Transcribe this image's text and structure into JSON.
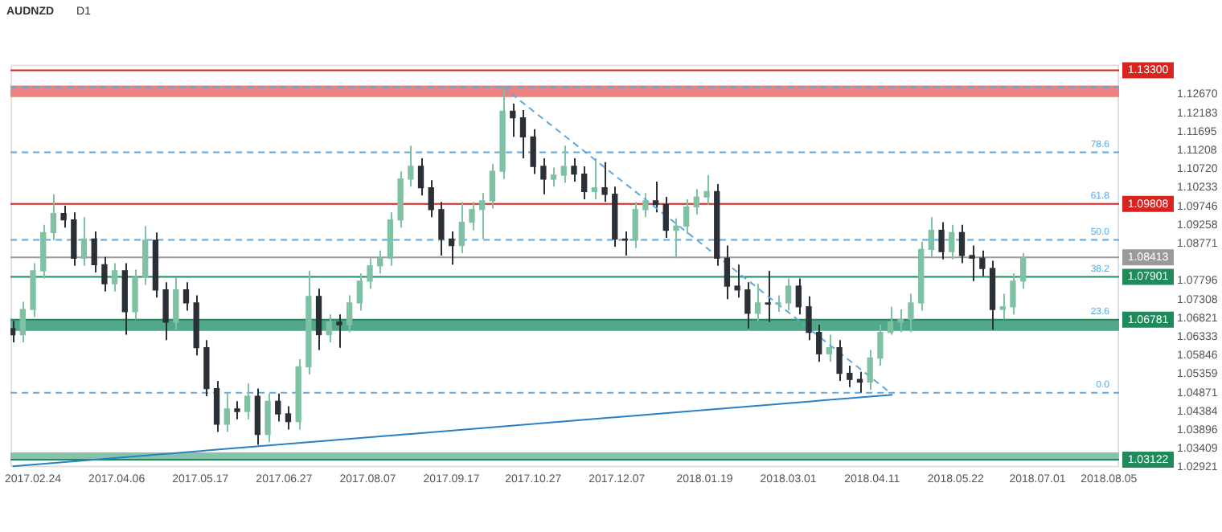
{
  "chart_data": {
    "type": "candlestick",
    "title": "AUDNZD",
    "annotations": [
      "D1",
      {
        "text": "78.6",
        "y": 1.1116
      },
      {
        "text": "61.8",
        "y": 1.09808
      },
      {
        "text": "50.0",
        "y": 1.0887
      },
      {
        "text": "38.2",
        "y": 1.07901
      },
      {
        "text": "23.6",
        "y": 1.06781
      },
      {
        "text": "0.0",
        "y": 1.0487
      }
    ],
    "x": [
      "2017-02-14",
      "2017-02-19",
      "2017-02-24",
      "2017-03-01",
      "2017-03-06",
      "2017-03-11",
      "2017-03-16",
      "2017-03-21",
      "2017-03-26",
      "2017-03-31",
      "2017-04-05",
      "2017-04-10",
      "2017-04-15",
      "2017-04-20",
      "2017-04-25",
      "2017-04-30",
      "2017-05-05",
      "2017-05-10",
      "2017-05-15",
      "2017-05-20",
      "2017-05-25",
      "2017-05-30",
      "2017-06-04",
      "2017-06-09",
      "2017-06-14",
      "2017-06-19",
      "2017-06-24",
      "2017-06-29",
      "2017-07-04",
      "2017-07-09",
      "2017-07-14",
      "2017-07-19",
      "2017-07-24",
      "2017-07-29",
      "2017-08-03",
      "2017-08-08",
      "2017-08-13",
      "2017-08-18",
      "2017-08-23",
      "2017-08-28",
      "2017-09-02",
      "2017-09-07",
      "2017-09-12",
      "2017-09-17",
      "2017-09-22",
      "2017-09-27",
      "2017-10-02",
      "2017-10-07",
      "2017-10-12",
      "2017-10-17",
      "2017-10-22",
      "2017-10-27",
      "2017-11-01",
      "2017-11-06",
      "2017-11-11",
      "2017-11-16",
      "2017-11-21",
      "2017-11-26",
      "2017-12-01",
      "2017-12-06",
      "2017-12-11",
      "2017-12-16",
      "2017-12-21",
      "2017-12-26",
      "2017-12-31",
      "2018-01-05",
      "2018-01-10",
      "2018-01-15",
      "2018-01-20",
      "2018-01-25",
      "2018-01-30",
      "2018-02-04",
      "2018-02-09",
      "2018-02-14",
      "2018-02-19",
      "2018-02-24",
      "2018-03-01",
      "2018-03-06",
      "2018-03-11",
      "2018-03-16",
      "2018-03-21",
      "2018-03-26",
      "2018-03-31",
      "2018-04-05",
      "2018-04-10",
      "2018-04-15",
      "2018-04-20",
      "2018-04-25",
      "2018-04-30",
      "2018-05-05",
      "2018-05-10",
      "2018-05-15",
      "2018-05-20",
      "2018-05-25",
      "2018-05-30",
      "2018-06-04",
      "2018-06-09",
      "2018-06-14",
      "2018-06-19",
      "2018-06-24"
    ],
    "ohlc": [
      [
        1.0655,
        1.0675,
        1.0619,
        1.0639
      ],
      [
        1.0639,
        1.0725,
        1.0619,
        1.0705
      ],
      [
        1.0705,
        1.0826,
        1.0685,
        1.0806
      ],
      [
        1.0806,
        1.0926,
        1.0786,
        1.0906
      ],
      [
        1.0906,
        1.1006,
        1.0886,
        1.0956
      ],
      [
        1.0956,
        1.0976,
        1.0919,
        1.0939
      ],
      [
        1.0939,
        1.0959,
        1.0819,
        1.0839
      ],
      [
        1.0839,
        1.0946,
        1.0819,
        1.0889
      ],
      [
        1.0889,
        1.0909,
        1.0802,
        1.0822
      ],
      [
        1.0822,
        1.0842,
        1.0752,
        1.0772
      ],
      [
        1.0772,
        1.0826,
        1.0752,
        1.0806
      ],
      [
        1.0806,
        1.0826,
        1.0639,
        1.0699
      ],
      [
        1.0699,
        1.0809,
        1.0679,
        1.0789
      ],
      [
        1.0789,
        1.0923,
        1.0769,
        1.0886
      ],
      [
        1.0886,
        1.0906,
        1.0736,
        1.0756
      ],
      [
        1.0756,
        1.0776,
        1.0625,
        1.0672
      ],
      [
        1.0672,
        1.0789,
        1.0652,
        1.0756
      ],
      [
        1.0756,
        1.0776,
        1.0702,
        1.0722
      ],
      [
        1.0722,
        1.0742,
        1.0585,
        1.0605
      ],
      [
        1.0605,
        1.0625,
        1.0478,
        1.0498
      ],
      [
        1.0498,
        1.0518,
        1.0385,
        1.0405
      ],
      [
        1.0405,
        1.0485,
        1.0385,
        1.0445
      ],
      [
        1.0445,
        1.0465,
        1.0418,
        1.0438
      ],
      [
        1.0438,
        1.0512,
        1.0418,
        1.0478
      ],
      [
        1.0478,
        1.0498,
        1.0351,
        1.0378
      ],
      [
        1.0378,
        1.0485,
        1.0358,
        1.0465
      ],
      [
        1.0465,
        1.0485,
        1.0412,
        1.0432
      ],
      [
        1.0432,
        1.0452,
        1.0391,
        1.0412
      ],
      [
        1.0412,
        1.0575,
        1.0391,
        1.0555
      ],
      [
        1.0555,
        1.0806,
        1.0535,
        1.0739
      ],
      [
        1.0739,
        1.0759,
        1.0599,
        1.0639
      ],
      [
        1.0639,
        1.0692,
        1.0619,
        1.0672
      ],
      [
        1.0672,
        1.0692,
        1.0605,
        1.0665
      ],
      [
        1.0665,
        1.0742,
        1.0645,
        1.0722
      ],
      [
        1.0722,
        1.0799,
        1.0702,
        1.0779
      ],
      [
        1.0779,
        1.0839,
        1.0759,
        1.0819
      ],
      [
        1.0819,
        1.0859,
        1.0799,
        1.0839
      ],
      [
        1.0839,
        1.0959,
        1.0819,
        1.0939
      ],
      [
        1.0939,
        1.1066,
        1.0919,
        1.1046
      ],
      [
        1.1046,
        1.1133,
        1.1026,
        1.1079
      ],
      [
        1.1079,
        1.11,
        1.1003,
        1.1023
      ],
      [
        1.1023,
        1.1043,
        1.0946,
        1.0966
      ],
      [
        1.0966,
        1.0986,
        1.0846,
        1.0889
      ],
      [
        1.0889,
        1.0909,
        1.0822,
        1.0872
      ],
      [
        1.0872,
        1.0986,
        1.0852,
        1.0933
      ],
      [
        1.0933,
        1.0986,
        1.0912,
        1.0966
      ],
      [
        1.0966,
        1.1009,
        1.0889,
        1.0989
      ],
      [
        1.0989,
        1.1086,
        1.0969,
        1.1066
      ],
      [
        1.1066,
        1.1287,
        1.1046,
        1.1223
      ],
      [
        1.1223,
        1.1243,
        1.1156,
        1.1206
      ],
      [
        1.1206,
        1.1226,
        1.11,
        1.1156
      ],
      [
        1.1156,
        1.1176,
        1.1059,
        1.1079
      ],
      [
        1.1079,
        1.11,
        1.1006,
        1.1046
      ],
      [
        1.1046,
        1.1076,
        1.1026,
        1.1056
      ],
      [
        1.1056,
        1.1133,
        1.1036,
        1.1079
      ],
      [
        1.1079,
        1.11,
        1.1039,
        1.1059
      ],
      [
        1.1059,
        1.1079,
        1.0993,
        1.1013
      ],
      [
        1.1013,
        1.11,
        1.0993,
        1.1023
      ],
      [
        1.1023,
        1.109,
        1.0986,
        1.1006
      ],
      [
        1.1006,
        1.1026,
        1.0869,
        1.0889
      ],
      [
        1.0889,
        1.0909,
        1.0846,
        1.0886
      ],
      [
        1.0886,
        1.0986,
        1.0866,
        1.0966
      ],
      [
        1.0966,
        1.1009,
        1.0946,
        1.0989
      ],
      [
        1.0989,
        1.1039,
        1.0959,
        1.0979
      ],
      [
        1.0979,
        1.0999,
        1.0892,
        1.0912
      ],
      [
        1.0912,
        1.0943,
        1.0839,
        1.0923
      ],
      [
        1.0923,
        1.0993,
        1.0902,
        1.0973
      ],
      [
        1.0973,
        1.1019,
        1.0953,
        1.0999
      ],
      [
        1.0999,
        1.1056,
        1.0979,
        1.1013
      ],
      [
        1.1013,
        1.1033,
        1.0819,
        1.0839
      ],
      [
        1.0839,
        1.0872,
        1.0732,
        1.0766
      ],
      [
        1.0766,
        1.0822,
        1.0736,
        1.0756
      ],
      [
        1.0756,
        1.0776,
        1.0655,
        1.0695
      ],
      [
        1.0695,
        1.0772,
        1.0675,
        1.0722
      ],
      [
        1.0722,
        1.0806,
        1.0672,
        1.0719
      ],
      [
        1.0719,
        1.0742,
        1.0699,
        1.0722
      ],
      [
        1.0722,
        1.0786,
        1.0702,
        1.0766
      ],
      [
        1.0766,
        1.0786,
        1.0692,
        1.0712
      ],
      [
        1.0712,
        1.0739,
        1.0625,
        1.0645
      ],
      [
        1.0645,
        1.0665,
        1.0568,
        1.0589
      ],
      [
        1.0589,
        1.0639,
        1.0568,
        1.0605
      ],
      [
        1.0605,
        1.0625,
        1.0518,
        1.0538
      ],
      [
        1.0538,
        1.0558,
        1.0502,
        1.0522
      ],
      [
        1.0522,
        1.0542,
        1.0487,
        1.0515
      ],
      [
        1.0515,
        1.0599,
        1.0495,
        1.0578
      ],
      [
        1.0578,
        1.0665,
        1.0558,
        1.0645
      ],
      [
        1.0645,
        1.0712,
        1.0639,
        1.0672
      ],
      [
        1.0672,
        1.0705,
        1.0645,
        1.0679
      ],
      [
        1.0679,
        1.0746,
        1.0645,
        1.0722
      ],
      [
        1.0722,
        1.0882,
        1.0702,
        1.0862
      ],
      [
        1.0862,
        1.0946,
        1.0842,
        1.0912
      ],
      [
        1.0912,
        1.0933,
        1.0836,
        1.0856
      ],
      [
        1.0856,
        1.0926,
        1.0836,
        1.0906
      ],
      [
        1.0906,
        1.0926,
        1.0826,
        1.0846
      ],
      [
        1.0846,
        1.0872,
        1.0779,
        1.0839
      ],
      [
        1.0839,
        1.0859,
        1.0792,
        1.0812
      ],
      [
        1.0812,
        1.0832,
        1.0652,
        1.0705
      ],
      [
        1.0705,
        1.0746,
        1.0679,
        1.0712
      ],
      [
        1.0712,
        1.0799,
        1.0692,
        1.0779
      ],
      [
        1.0779,
        1.0852,
        1.0759,
        1.0841
      ]
    ],
    "series": [
      {
        "type": "line",
        "x": [
          "2017-02-14",
          "2018-04-21"
        ],
        "values": [
          1.0295,
          1.0482
        ],
        "color": "#2a7fc9",
        "line_style": "solid"
      },
      {
        "type": "line",
        "x": [
          "2017-10-12",
          "2018-04-20"
        ],
        "values": [
          1.1287,
          1.0487
        ],
        "color": "#5aa9e6",
        "line_style": "dashed"
      }
    ],
    "xlim": [
      "2017-02-13",
      "2018-08-10"
    ],
    "xticks": [
      {
        "value": "2017-02-24",
        "label": "2017.02.24"
      },
      {
        "value": "2017-04-06",
        "label": "2017.04.06"
      },
      {
        "value": "2017-05-17",
        "label": "2017.05.17"
      },
      {
        "value": "2017-06-27",
        "label": "2017.06.27"
      },
      {
        "value": "2017-08-07",
        "label": "2017.08.07"
      },
      {
        "value": "2017-09-17",
        "label": "2017.09.17"
      },
      {
        "value": "2017-10-27",
        "label": "2017.10.27"
      },
      {
        "value": "2017-12-07",
        "label": "2017.12.07"
      },
      {
        "value": "2018-01-19",
        "label": "2018.01.19"
      },
      {
        "value": "2018-03-01",
        "label": "2018.03.01"
      },
      {
        "value": "2018-04-11",
        "label": "2018.04.11"
      },
      {
        "value": "2018-05-22",
        "label": "2018.05.22"
      },
      {
        "value": "2018-07-01",
        "label": "2018.07.01"
      },
      {
        "value": "2018-08-05",
        "label": "2018.08.05"
      }
    ],
    "ylim": [
      1.02921,
      1.1345
    ],
    "yticks": [
      1.02921,
      1.03409,
      1.03896,
      1.04384,
      1.04871,
      1.05359,
      1.05846,
      1.06333,
      1.06821,
      1.07308,
      1.07796,
      1.08771,
      1.09258,
      1.09746,
      1.10233,
      {
        "value": 1.1072,
        "label": "1.10720"
      },
      1.11208,
      1.11695,
      1.12183,
      {
        "value": 1.1267,
        "label": "1.12670"
      }
    ],
    "bands": [
      {
        "axis": "y",
        "from": 1.126,
        "to": 1.129,
        "color": "#e8837f"
      },
      {
        "axis": "y",
        "from": 1.0649,
        "to": 1.06781,
        "color": "#4fa98a"
      },
      {
        "axis": "y",
        "from": 1.03122,
        "to": 1.0331,
        "color": "#86c3aa"
      }
    ],
    "ref_lines": [
      {
        "axis": "y",
        "value": 1.1287,
        "color": "#5aa9e6",
        "line_style": "dashed"
      },
      {
        "axis": "y",
        "value": 1.1116,
        "color": "#5aa9e6",
        "line_style": "dashed"
      },
      {
        "axis": "y",
        "value": 1.0887,
        "color": "#5aa9e6",
        "line_style": "dashed"
      },
      {
        "axis": "y",
        "value": 1.0487,
        "color": "#5aa9e6",
        "line_style": "dashed"
      },
      {
        "axis": "y",
        "value": 1.133,
        "label": "1.13300",
        "color": "#d9231f",
        "line_style": "solid"
      },
      {
        "axis": "y",
        "value": 1.09808,
        "label": "1.09808",
        "color": "#d9231f",
        "line_style": "solid"
      },
      {
        "axis": "y",
        "value": 1.08413,
        "label": "1.08413",
        "color": "#9a9a9a",
        "line_style": "solid"
      },
      {
        "axis": "y",
        "value": 1.07901,
        "label": "1.07901",
        "color": "#1f8a5a",
        "line_style": "solid"
      },
      {
        "axis": "y",
        "value": 1.06781,
        "label": "1.06781",
        "color": "#1f8a5a",
        "line_style": "solid"
      },
      {
        "axis": "y",
        "value": 1.03122,
        "label": "1.03122",
        "color": "#1f8a5a",
        "line_style": "solid"
      }
    ]
  }
}
